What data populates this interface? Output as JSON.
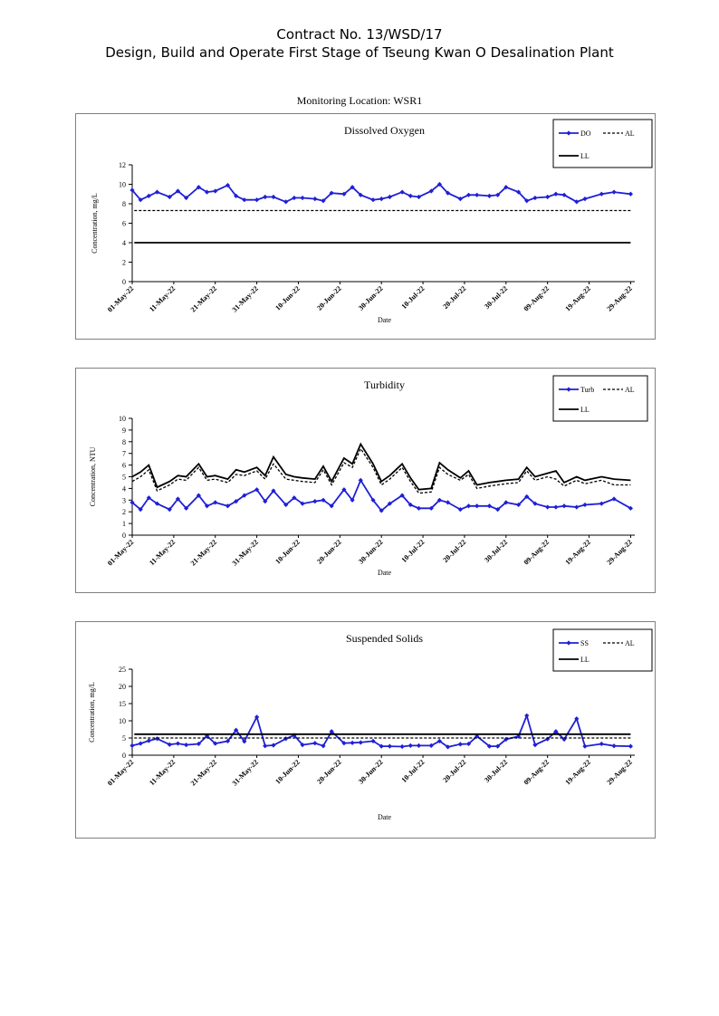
{
  "header": {
    "line1": "Contract No. 13/WSD/17",
    "line2": "Design, Build and Operate First Stage of Tseung Kwan O Desalination Plant"
  },
  "location_label": "Monitoring Location: WSR1",
  "x_tick_labels": [
    "01-May-22",
    "11-May-22",
    "21-May-22",
    "31-May-22",
    "10-Jun-22",
    "20-Jun-22",
    "30-Jun-22",
    "10-Jul-22",
    "20-Jul-22",
    "30-Jul-22",
    "09-Aug-22",
    "19-Aug-22",
    "29-Aug-22"
  ],
  "colors": {
    "measured": "#1f1fd6",
    "limits": "#000000"
  },
  "chart_data": [
    {
      "type": "line",
      "title": "Dissolved Oxygen",
      "xlabel": "Date",
      "ylabel": "Concentration, mg/L",
      "ylim": [
        0,
        12
      ],
      "yticks": [
        0,
        2,
        4,
        6,
        8,
        10,
        12
      ],
      "xlim_days": [
        0,
        121
      ],
      "legend_position": "top-right",
      "legend": [
        "DO",
        "AL",
        "LL"
      ],
      "x_days": [
        0,
        2,
        4,
        6,
        9,
        11,
        13,
        16,
        18,
        20,
        23,
        25,
        27,
        30,
        32,
        34,
        37,
        39,
        41,
        44,
        46,
        48,
        51,
        53,
        55,
        58,
        60,
        62,
        65,
        67,
        69,
        72,
        74,
        76,
        79,
        81,
        83,
        86,
        88,
        90,
        93,
        95,
        97,
        100,
        102,
        104,
        107,
        109,
        113,
        116,
        120
      ],
      "series": [
        {
          "name": "DO",
          "style": "marker-line",
          "values": [
            9.4,
            8.4,
            8.8,
            9.2,
            8.7,
            9.3,
            8.6,
            9.7,
            9.2,
            9.3,
            9.9,
            8.8,
            8.4,
            8.4,
            8.7,
            8.7,
            8.2,
            8.6,
            8.6,
            8.5,
            8.3,
            9.1,
            9.0,
            9.7,
            8.9,
            8.4,
            8.5,
            8.7,
            9.2,
            8.8,
            8.7,
            9.3,
            10.0,
            9.1,
            8.5,
            8.9,
            8.9,
            8.8,
            8.9,
            9.7,
            9.2,
            8.3,
            8.6,
            8.7,
            9.0,
            8.9,
            8.2,
            8.5,
            9.0,
            9.2,
            9.0
          ]
        },
        {
          "name": "AL",
          "style": "dashed",
          "values": [
            7.3,
            7.3
          ]
        },
        {
          "name": "LL",
          "style": "solid",
          "values": [
            4.0,
            4.0
          ]
        }
      ]
    },
    {
      "type": "line",
      "title": "Turbidity",
      "xlabel": "Date",
      "ylabel": "Concentration, NTU",
      "ylim": [
        0,
        10
      ],
      "yticks": [
        0,
        1,
        2,
        3,
        4,
        5,
        6,
        7,
        8,
        9,
        10
      ],
      "xlim_days": [
        0,
        121
      ],
      "legend_position": "top-right",
      "legend": [
        "Turb",
        "AL",
        "LL"
      ],
      "x_days": [
        0,
        2,
        4,
        6,
        9,
        11,
        13,
        16,
        18,
        20,
        23,
        25,
        27,
        30,
        32,
        34,
        37,
        39,
        41,
        44,
        46,
        48,
        51,
        53,
        55,
        58,
        60,
        62,
        65,
        67,
        69,
        72,
        74,
        76,
        79,
        81,
        83,
        86,
        88,
        90,
        93,
        95,
        97,
        100,
        102,
        104,
        107,
        109,
        113,
        116,
        120
      ],
      "series": [
        {
          "name": "Turb",
          "style": "marker-line",
          "values": [
            2.8,
            2.2,
            3.2,
            2.7,
            2.2,
            3.1,
            2.3,
            3.4,
            2.5,
            2.8,
            2.5,
            2.9,
            3.4,
            3.9,
            2.9,
            3.8,
            2.6,
            3.2,
            2.7,
            2.9,
            3.0,
            2.5,
            3.9,
            3.0,
            4.7,
            3.0,
            2.1,
            2.7,
            3.4,
            2.6,
            2.3,
            2.3,
            3.0,
            2.8,
            2.2,
            2.5,
            2.5,
            2.5,
            2.2,
            2.8,
            2.6,
            3.3,
            2.7,
            2.4,
            2.4,
            2.5,
            2.4,
            2.6,
            2.7,
            3.1,
            2.3
          ]
        },
        {
          "name": "AL",
          "style": "dashed",
          "values": [
            4.6,
            5.0,
            5.6,
            3.8,
            4.3,
            4.8,
            4.7,
            5.8,
            4.7,
            4.8,
            4.5,
            5.2,
            5.1,
            5.5,
            4.8,
            6.1,
            4.8,
            4.7,
            4.6,
            4.5,
            5.6,
            4.3,
            6.2,
            5.8,
            7.4,
            5.8,
            4.3,
            4.8,
            5.8,
            4.6,
            3.6,
            3.7,
            5.8,
            5.2,
            4.7,
            5.2,
            4.0,
            4.2,
            4.3,
            4.4,
            4.5,
            5.5,
            4.7,
            5.0,
            4.8,
            4.2,
            4.7,
            4.4,
            4.7,
            4.3,
            4.3
          ]
        },
        {
          "name": "LL",
          "style": "solid",
          "values": [
            5.0,
            5.4,
            6.0,
            4.1,
            4.6,
            5.1,
            5.0,
            6.1,
            5.0,
            5.1,
            4.8,
            5.6,
            5.4,
            5.8,
            5.1,
            6.7,
            5.2,
            5.0,
            4.9,
            4.8,
            5.9,
            4.6,
            6.6,
            6.1,
            7.8,
            6.1,
            4.6,
            5.1,
            6.1,
            4.9,
            3.9,
            4.0,
            6.2,
            5.6,
            4.9,
            5.5,
            4.3,
            4.5,
            4.6,
            4.7,
            4.8,
            5.8,
            5.0,
            5.3,
            5.5,
            4.5,
            5.0,
            4.7,
            5.0,
            4.8,
            4.7
          ]
        }
      ]
    },
    {
      "type": "line",
      "title": "Suspended Solids",
      "xlabel": "Date",
      "ylabel": "Concentration, mg/L",
      "ylim": [
        0,
        25
      ],
      "yticks": [
        0,
        5,
        10,
        15,
        20,
        25
      ],
      "xlim_days": [
        0,
        121
      ],
      "legend_position": "top-right",
      "legend": [
        "SS",
        "AL",
        "LL"
      ],
      "x_days": [
        0,
        2,
        4,
        6,
        9,
        11,
        13,
        16,
        18,
        20,
        23,
        25,
        27,
        30,
        32,
        34,
        37,
        39,
        41,
        44,
        46,
        48,
        51,
        53,
        55,
        58,
        60,
        62,
        65,
        67,
        69,
        72,
        74,
        76,
        79,
        81,
        83,
        86,
        88,
        90,
        93,
        95,
        97,
        100,
        102,
        104,
        107,
        109,
        113,
        116,
        120
      ],
      "series": [
        {
          "name": "SS",
          "style": "marker-line",
          "values": [
            2.8,
            3.4,
            4.2,
            4.8,
            3.1,
            3.4,
            3.0,
            3.3,
            5.6,
            3.4,
            4.1,
            7.3,
            4.0,
            11.1,
            2.7,
            2.9,
            4.8,
            5.8,
            3.0,
            3.5,
            2.7,
            6.9,
            3.5,
            3.6,
            3.7,
            4.1,
            2.6,
            2.6,
            2.5,
            2.8,
            2.8,
            2.8,
            4.1,
            2.4,
            3.2,
            3.3,
            5.5,
            2.6,
            2.6,
            4.6,
            5.5,
            11.5,
            3.0,
            4.7,
            6.9,
            4.6,
            10.6,
            2.6,
            3.3,
            2.7,
            2.6
          ]
        },
        {
          "name": "AL",
          "style": "dashed",
          "values": [
            5.0,
            5.0
          ]
        },
        {
          "name": "LL",
          "style": "solid",
          "values": [
            6.1,
            6.1
          ]
        }
      ]
    }
  ]
}
